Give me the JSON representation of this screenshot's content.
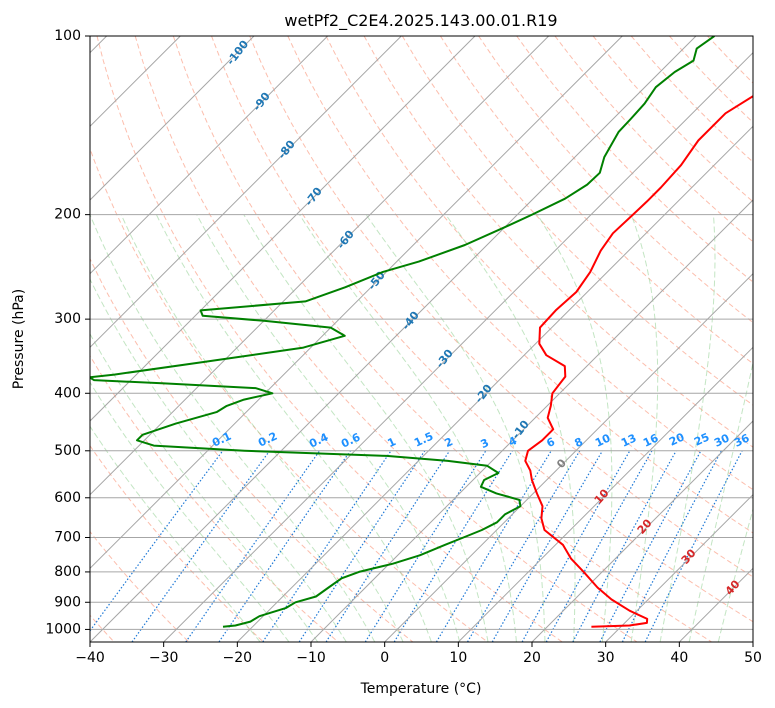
{
  "chart_data": {
    "type": "line",
    "title": "wetPf2_C2E4.2025.143.00.01.R19",
    "xlabel": "Temperature (°C)",
    "ylabel": "Pressure (hPa)",
    "xlim": [
      -40,
      50
    ],
    "ylim": [
      1050,
      100
    ],
    "y_scale": "log",
    "skew": "skew-T log-P",
    "grid": true,
    "x_ticks": [
      "-40",
      "-30",
      "-20",
      "-10",
      "0",
      "10",
      "20",
      "30",
      "40",
      "50"
    ],
    "y_ticks": [
      "100",
      "200",
      "300",
      "400",
      "500",
      "600",
      "700",
      "800",
      "900",
      "1000"
    ],
    "series": [
      {
        "key": "temperature",
        "color": "#ff0000",
        "points": [
          [
            -5.0,
            100
          ],
          [
            -18.0,
            110
          ],
          [
            -23.0,
            120
          ],
          [
            -25.5,
            135
          ],
          [
            -25.5,
            150
          ],
          [
            -24.5,
            165
          ],
          [
            -24.2,
            180
          ],
          [
            -24.2,
            190
          ],
          [
            -24.3,
            200
          ],
          [
            -24.5,
            215
          ],
          [
            -23.8,
            230
          ],
          [
            -22.3,
            250
          ],
          [
            -21.5,
            270
          ],
          [
            -21.8,
            290
          ],
          [
            -21.6,
            310
          ],
          [
            -19.5,
            330
          ],
          [
            -17.0,
            345
          ],
          [
            -13.0,
            360
          ],
          [
            -11.5,
            375
          ],
          [
            -11.0,
            400
          ],
          [
            -9.5,
            420
          ],
          [
            -8.3,
            440
          ],
          [
            -6.0,
            460
          ],
          [
            -6.0,
            480
          ],
          [
            -6.5,
            500
          ],
          [
            -5.5,
            520
          ],
          [
            -3.5,
            540
          ],
          [
            -2.0,
            560
          ],
          [
            0.5,
            590
          ],
          [
            3.0,
            620
          ],
          [
            4.5,
            650
          ],
          [
            6.5,
            680
          ],
          [
            11.0,
            720
          ],
          [
            14.0,
            760
          ],
          [
            17.5,
            800
          ],
          [
            21.5,
            850
          ],
          [
            25.0,
            890
          ],
          [
            29.0,
            930
          ],
          [
            32.5,
            960
          ],
          [
            33.0,
            975
          ],
          [
            31.0,
            985
          ],
          [
            26.0,
            990
          ]
        ]
      },
      {
        "key": "dewpoint",
        "color": "#008000",
        "points": [
          [
            -37.5,
            100
          ],
          [
            -38.2,
            105
          ],
          [
            -37.0,
            110
          ],
          [
            -38.0,
            115
          ],
          [
            -38.5,
            122
          ],
          [
            -37.8,
            130
          ],
          [
            -37.6,
            138
          ],
          [
            -37.5,
            145
          ],
          [
            -36.0,
            160
          ],
          [
            -34.5,
            170
          ],
          [
            -34.6,
            178
          ],
          [
            -35.7,
            188
          ],
          [
            -38.0,
            200
          ],
          [
            -40.0,
            210
          ],
          [
            -43.0,
            225
          ],
          [
            -47.0,
            240
          ],
          [
            -50.5,
            250
          ],
          [
            -53.5,
            265
          ],
          [
            -57.0,
            280
          ],
          [
            -70.0,
            290
          ],
          [
            -69.0,
            296
          ],
          [
            -60.0,
            302
          ],
          [
            -50.0,
            310
          ],
          [
            -47.0,
            320
          ],
          [
            -51.0,
            335
          ],
          [
            -63.0,
            355
          ],
          [
            -73.0,
            372
          ],
          [
            -76.0,
            376
          ],
          [
            -75.0,
            380
          ],
          [
            -65.0,
            385
          ],
          [
            -52.0,
            392
          ],
          [
            -49.0,
            400
          ],
          [
            -52.0,
            410
          ],
          [
            -53.5,
            420
          ],
          [
            -54.0,
            430
          ],
          [
            -58.0,
            450
          ],
          [
            -61.0,
            470
          ],
          [
            -61.0,
            480
          ],
          [
            -58.0,
            490
          ],
          [
            -45.0,
            500
          ],
          [
            -25.0,
            510
          ],
          [
            -16.0,
            520
          ],
          [
            -10.0,
            530
          ],
          [
            -7.5,
            545
          ],
          [
            -8.5,
            560
          ],
          [
            -8.0,
            575
          ],
          [
            -5.0,
            590
          ],
          [
            -1.0,
            605
          ],
          [
            0.0,
            620
          ],
          [
            -1.0,
            640
          ],
          [
            -1.0,
            660
          ],
          [
            -2.0,
            680
          ],
          [
            -3.5,
            700
          ],
          [
            -5.0,
            720
          ],
          [
            -7.0,
            750
          ],
          [
            -9.5,
            775
          ],
          [
            -13.0,
            800
          ],
          [
            -14.5,
            820
          ],
          [
            -15.0,
            850
          ],
          [
            -15.5,
            880
          ],
          [
            -17.5,
            900
          ],
          [
            -18.0,
            920
          ],
          [
            -20.5,
            950
          ],
          [
            -21.0,
            970
          ],
          [
            -22.5,
            985
          ],
          [
            -24.0,
            990
          ]
        ]
      }
    ],
    "dry_adiabat_labels": [
      "-100",
      "-90",
      "-80",
      "-70",
      "-60",
      "-50",
      "-40",
      "-30",
      "-20",
      "-10"
    ],
    "mixing_ratio_labels": [
      "0.1",
      "0.2",
      "0.4",
      "0.6",
      "1",
      "1.5",
      "2",
      "3",
      "4",
      "6",
      "8",
      "10",
      "13",
      "16",
      "20",
      "25",
      "30",
      "36"
    ],
    "moist_adiabat_labels": [
      "0",
      "10",
      "20",
      "30",
      "40"
    ],
    "colors": {
      "temperature": "#ff0000",
      "dewpoint": "#008000",
      "isotherm": "#a6a6a6",
      "isobar": "#a6a6a6",
      "dry_adiabat": "#fa9b81",
      "moist_adiabat": "#9bd39b",
      "mixing_ratio": "#1e78d6",
      "label_blue": "#1f77b4",
      "label_red": "#d62728"
    }
  }
}
